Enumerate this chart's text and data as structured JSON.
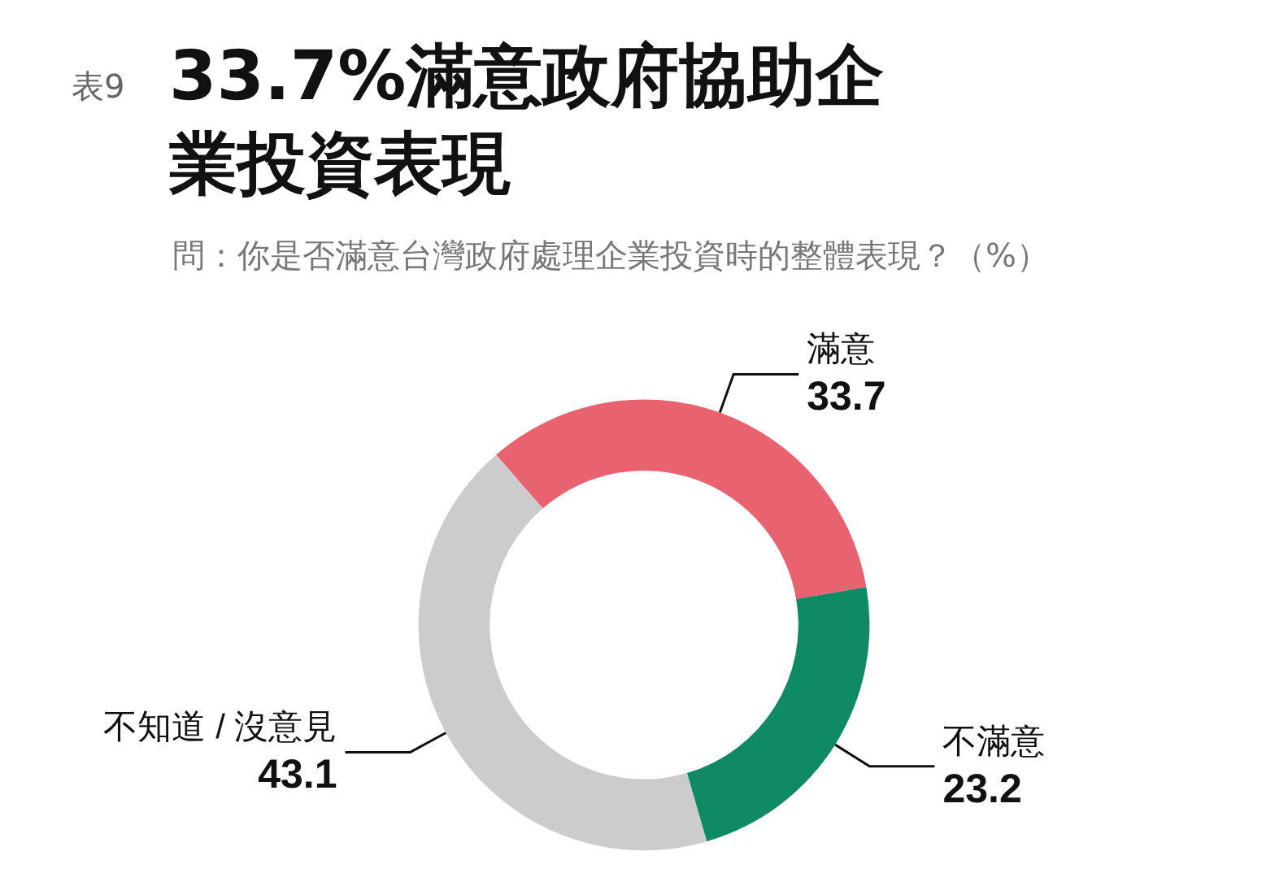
{
  "chart_data": {
    "type": "donut",
    "title": "33.7%滿意政府協助企業投資表現",
    "subtitle": "問：你是否滿意台灣政府處理企業投資時的整體表現？（%）",
    "annotations": [
      "表9"
    ],
    "categories": [
      "滿意",
      "不滿意",
      "不知道 / 沒意見"
    ],
    "values": [
      33.7,
      23.2,
      43.1
    ],
    "colors": [
      "#e8636f",
      "#0e8a64",
      "#cccccc"
    ],
    "data_labels": true,
    "legend": false
  }
}
